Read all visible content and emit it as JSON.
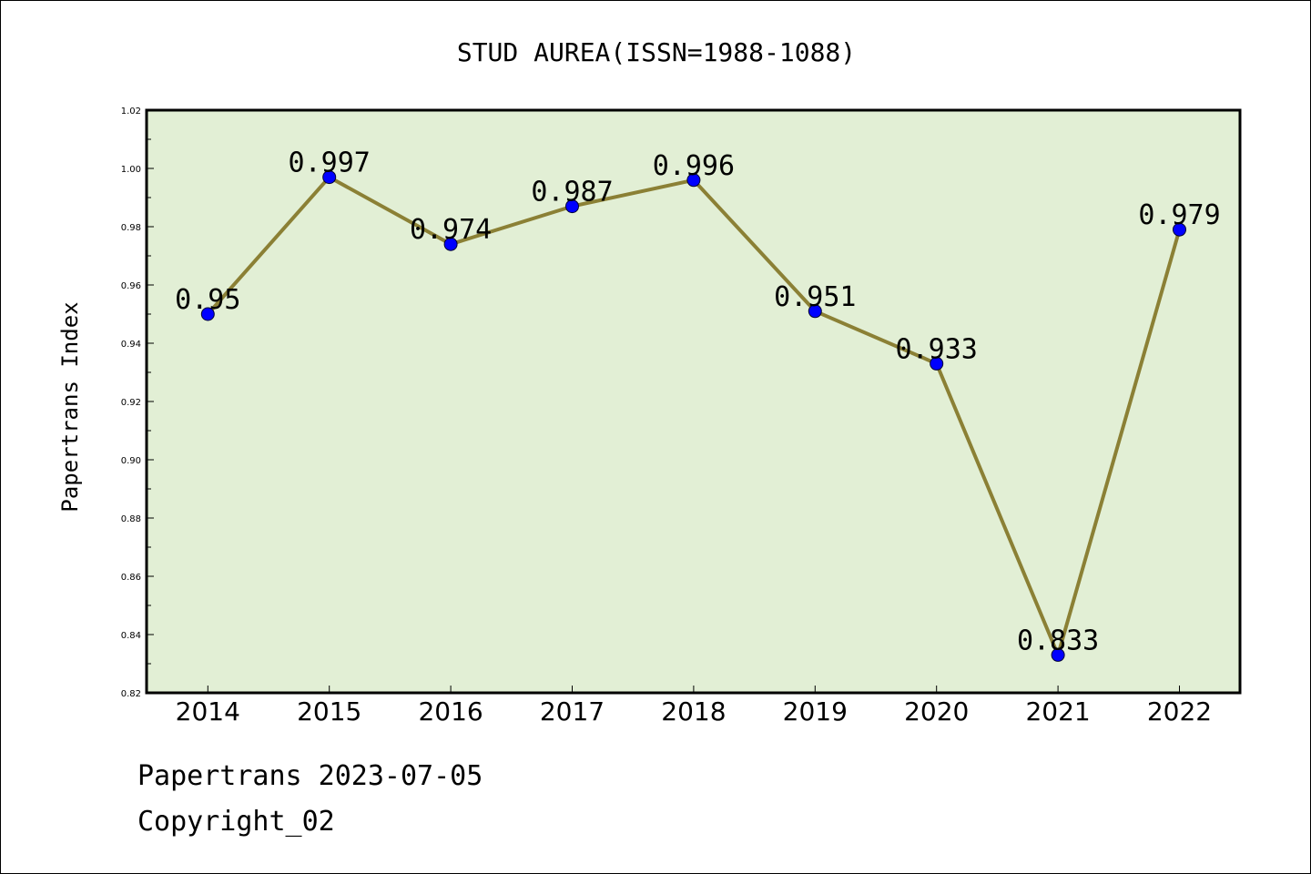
{
  "chart_data": {
    "type": "line",
    "title": "STUD AUREA(ISSN=1988-1088)",
    "xlabel": "",
    "ylabel": "Papertrans Index",
    "categories": [
      "2014",
      "2015",
      "2016",
      "2017",
      "2018",
      "2019",
      "2020",
      "2021",
      "2022"
    ],
    "series": [
      {
        "values": [
          0.95,
          0.997,
          0.974,
          0.987,
          0.996,
          0.951,
          0.933,
          0.833,
          0.979
        ],
        "data_labels": [
          "0.95",
          "0.997",
          "0.974",
          "0.987",
          "0.996",
          "0.951",
          "0.933",
          "0.833",
          "0.979"
        ]
      }
    ],
    "ylim": [
      0.82,
      1.02
    ],
    "yticks": [
      "0.82",
      "0.84",
      "0.86",
      "0.88",
      "0.90",
      "0.92",
      "0.94",
      "0.96",
      "0.98",
      "1.00",
      "1.02"
    ],
    "grid": false,
    "legend": "none",
    "colors": {
      "plot_background": "#e2efd5",
      "line": "#8b8035",
      "marker": "#0000ff"
    }
  },
  "footer": {
    "line1": "Papertrans 2023-07-05",
    "line2": "Copyright_02"
  }
}
